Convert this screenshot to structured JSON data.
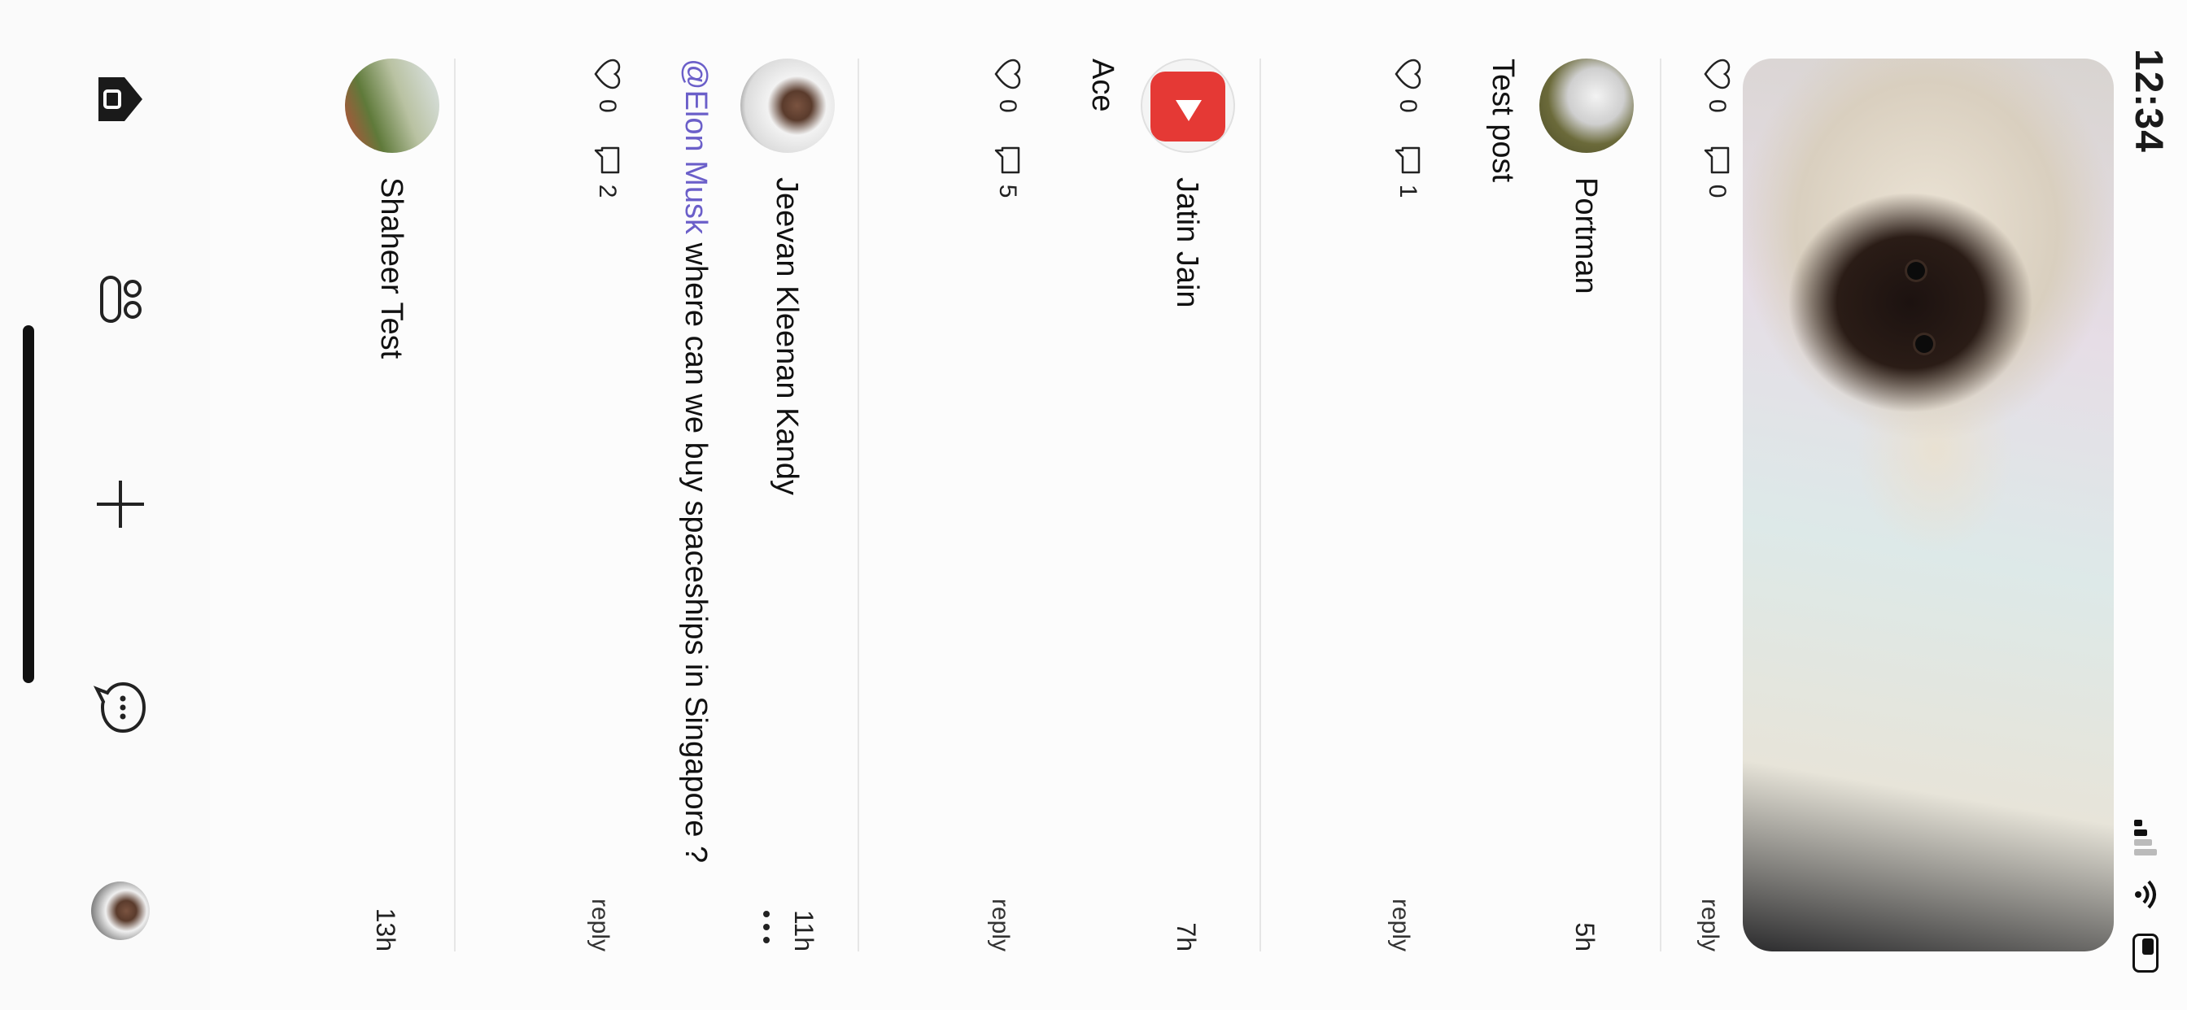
{
  "status_bar": {
    "time": "12:34"
  },
  "feed": {
    "top_post": {
      "likes": "0",
      "comments": "0",
      "reply": "reply"
    },
    "posts": [
      {
        "author": "Portman",
        "time": "5h",
        "text": "Test post",
        "likes": "0",
        "comments": "1",
        "reply": "reply"
      },
      {
        "author": "Jatin Jain",
        "time": "7h",
        "text": "Ace",
        "likes": "0",
        "comments": "5",
        "reply": "reply"
      },
      {
        "author": "Jeevan Kleenan Kandy",
        "time": "11h",
        "mention": "@Elon Musk",
        "text": " where can we buy spaceships in Singapore ?",
        "likes": "0",
        "comments": "2",
        "reply": "reply"
      },
      {
        "author": "Shaheer Test",
        "time": "13h"
      }
    ]
  },
  "bottom_nav": {
    "items": [
      "home",
      "people",
      "create",
      "messages",
      "profile"
    ],
    "icons": [
      "home-icon",
      "people-icon",
      "plus-icon",
      "chat-bubble-icon",
      "avatar"
    ]
  },
  "colors": {
    "mention": "#6b5fc9",
    "youtube_red": "#e53935",
    "background": "#fcfcfc"
  }
}
